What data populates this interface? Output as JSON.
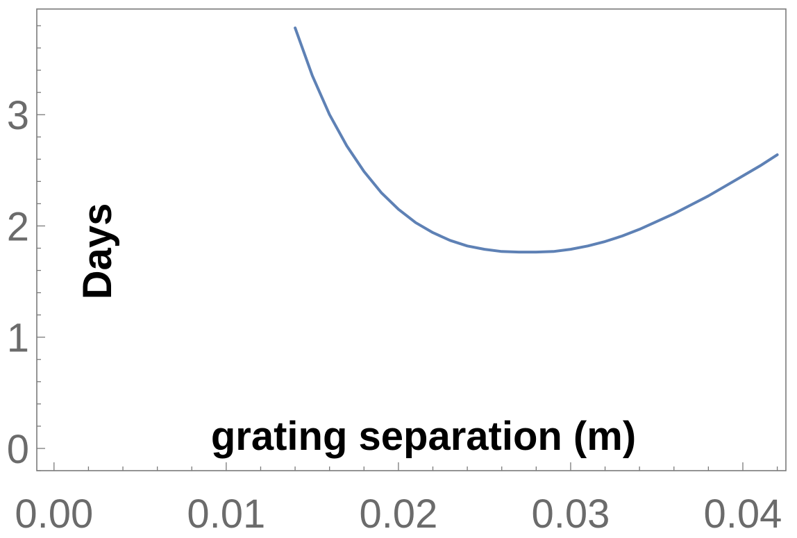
{
  "chart_data": {
    "type": "line",
    "xlabel": "grating separation (m)",
    "ylabel": "Days",
    "xlim": [
      -0.001,
      0.0425
    ],
    "ylim": [
      -0.2,
      3.95
    ],
    "x_ticks": [
      "0.00",
      "0.01",
      "0.02",
      "0.03",
      "0.04"
    ],
    "y_ticks": [
      "0",
      "1",
      "2",
      "3"
    ],
    "x_tick_values": [
      0.0,
      0.01,
      0.02,
      0.03,
      0.04
    ],
    "y_tick_values": [
      0,
      1,
      2,
      3
    ],
    "grid": false,
    "series": [
      {
        "color": "#5e81b5",
        "points": [
          [
            0.014,
            3.78
          ],
          [
            0.015,
            3.35
          ],
          [
            0.016,
            3.0
          ],
          [
            0.017,
            2.72
          ],
          [
            0.018,
            2.49
          ],
          [
            0.019,
            2.3
          ],
          [
            0.02,
            2.15
          ],
          [
            0.021,
            2.03
          ],
          [
            0.022,
            1.94
          ],
          [
            0.023,
            1.87
          ],
          [
            0.024,
            1.82
          ],
          [
            0.025,
            1.79
          ],
          [
            0.026,
            1.77
          ],
          [
            0.027,
            1.765
          ],
          [
            0.028,
            1.765
          ],
          [
            0.029,
            1.77
          ],
          [
            0.03,
            1.79
          ],
          [
            0.031,
            1.82
          ],
          [
            0.032,
            1.86
          ],
          [
            0.033,
            1.91
          ],
          [
            0.034,
            1.97
          ],
          [
            0.035,
            2.04
          ],
          [
            0.036,
            2.11
          ],
          [
            0.037,
            2.19
          ],
          [
            0.038,
            2.27
          ],
          [
            0.039,
            2.36
          ],
          [
            0.04,
            2.45
          ],
          [
            0.041,
            2.54
          ],
          [
            0.042,
            2.64
          ]
        ]
      }
    ]
  }
}
